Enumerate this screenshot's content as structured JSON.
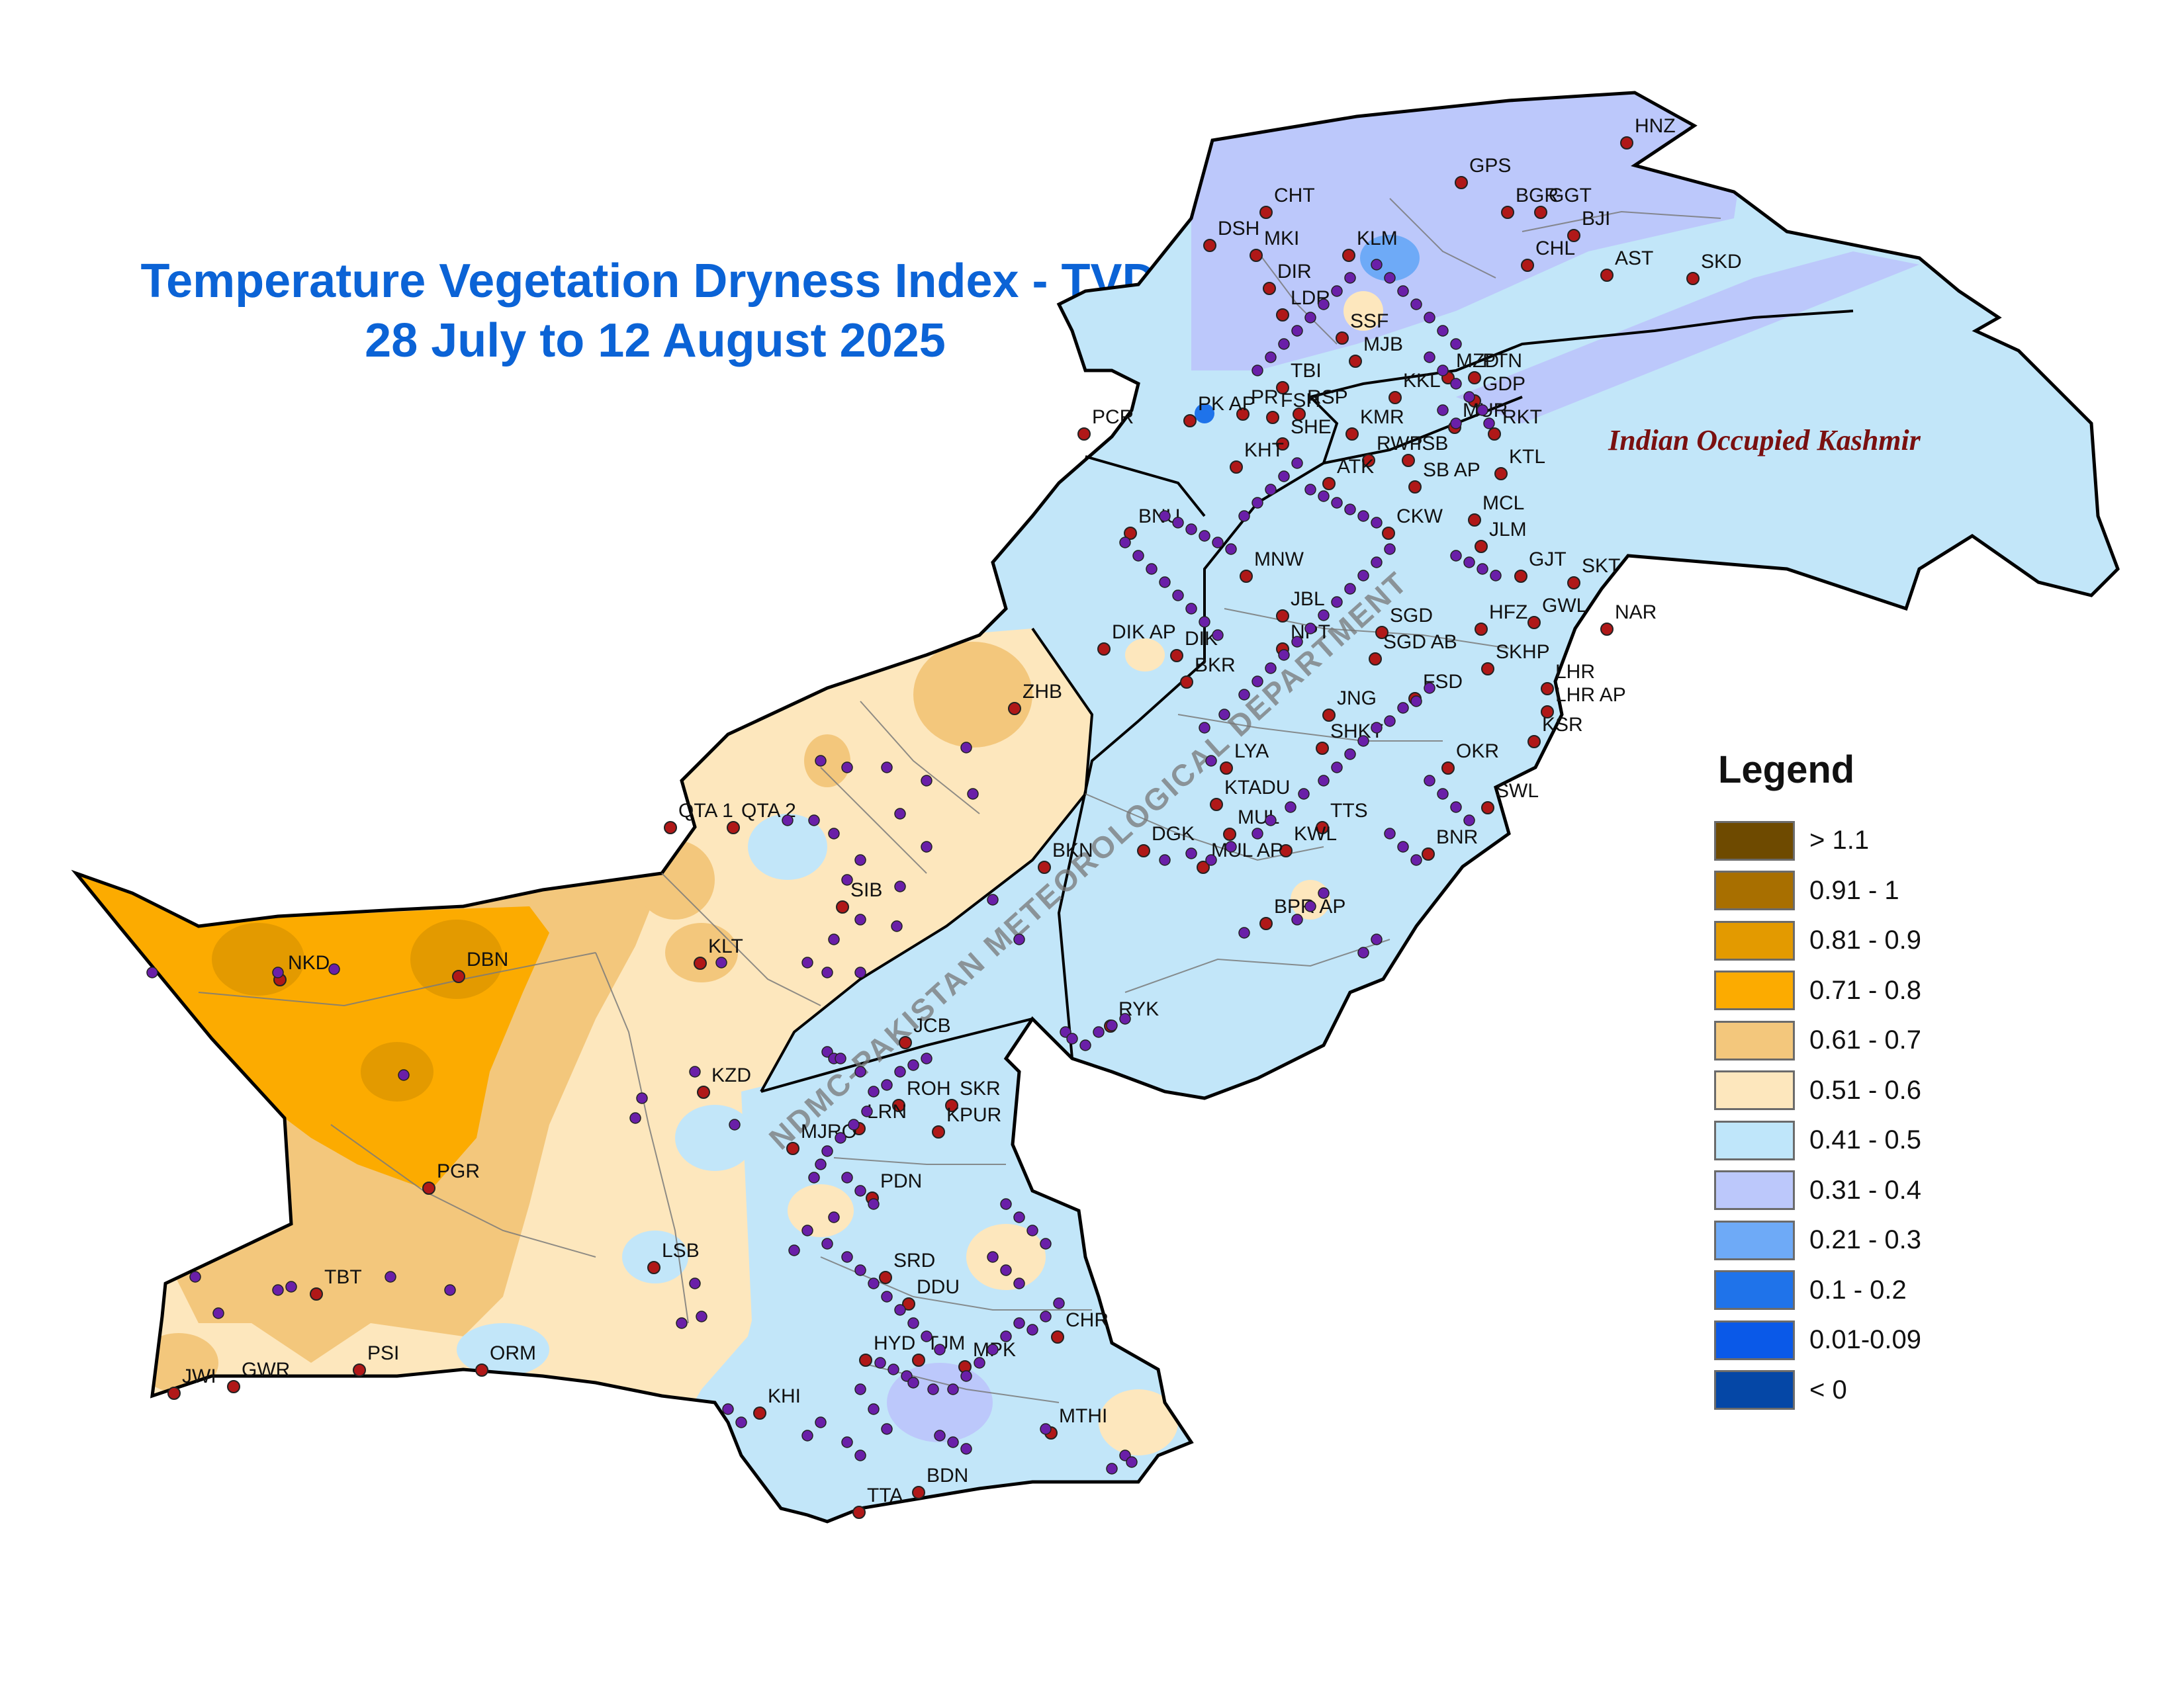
{
  "title": {
    "line1": "Temperature Vegetation Dryness Index - TVDI",
    "line2": "28 July to 12 August 2025"
  },
  "region_label": "Indian Occupied Kashmir",
  "watermark": "NDMC-PAKISTAN METEOROLOGICAL DEPARTMENT",
  "legend": {
    "title": "Legend",
    "items": [
      {
        "label": "> 1.1",
        "color": "#6e4a00"
      },
      {
        "label": "0.91 - 1",
        "color": "#a86f00"
      },
      {
        "label": "0.81 - 0.9",
        "color": "#e39a00"
      },
      {
        "label": "0.71 - 0.8",
        "color": "#fcab00"
      },
      {
        "label": "0.61 - 0.7",
        "color": "#f3c77c"
      },
      {
        "label": "0.51 - 0.6",
        "color": "#fde7bd"
      },
      {
        "label": "0.41 - 0.5",
        "color": "#bfe6fa"
      },
      {
        "label": "0.31 - 0.4",
        "color": "#bcc8fb"
      },
      {
        "label": "0.21 - 0.3",
        "color": "#6eaaf7"
      },
      {
        "label": "0.1 - 0.2",
        "color": "#1f73ea"
      },
      {
        "label": "0.01-0.09",
        "color": "#0a59e8"
      },
      {
        "label": "< 0",
        "color": "#0547a6"
      }
    ]
  },
  "stations": [
    "HNZ",
    "GPS",
    "BGR",
    "GGT",
    "CHT",
    "BJI",
    "DSH",
    "MKI",
    "KLM",
    "CHL",
    "AST",
    "SKD",
    "DIR",
    "LDR",
    "SSF",
    "MJB",
    "TBI",
    "MZD",
    "PTN",
    "KKL",
    "GDP",
    "PR",
    "RSP",
    "PK AP",
    "FSH",
    "MUR",
    "RKT",
    "PCR",
    "SHE",
    "KMR",
    "RWP",
    "ISB",
    "KHT",
    "KTL",
    "ATK",
    "SB AP",
    "MCL",
    "BNU",
    "CKW",
    "JLM",
    "GJT",
    "SKT",
    "MNW",
    "JBL",
    "SGD",
    "GWL",
    "HFZ",
    "NAR",
    "DIK AP",
    "DIK",
    "NPT",
    "SGD AB",
    "BKR",
    "SKHP",
    "ZHB",
    "LHR",
    "FSD",
    "LHR AP",
    "JNG",
    "KSR",
    "SHKT",
    "LYA",
    "OKR",
    "KTADU",
    "QTA 1",
    "QTA 2",
    "TTS",
    "MUL",
    "SWL",
    "DGK",
    "KWL",
    "MUL AP",
    "BNR",
    "BKN",
    "SIB",
    "BPR AP",
    "KLT",
    "NKD",
    "DBN",
    "RYK",
    "JCB",
    "KZD",
    "ROH",
    "SKR",
    "LRN",
    "KPUR",
    "MJRO",
    "PGR",
    "PDN",
    "LSB",
    "SRD",
    "TBT",
    "DDU",
    "CHR",
    "HYD",
    "TJM",
    "MPK",
    "PSI",
    "ORM",
    "JWI",
    "GWR",
    "KHI",
    "MTHI",
    "BDN",
    "TTA"
  ]
}
